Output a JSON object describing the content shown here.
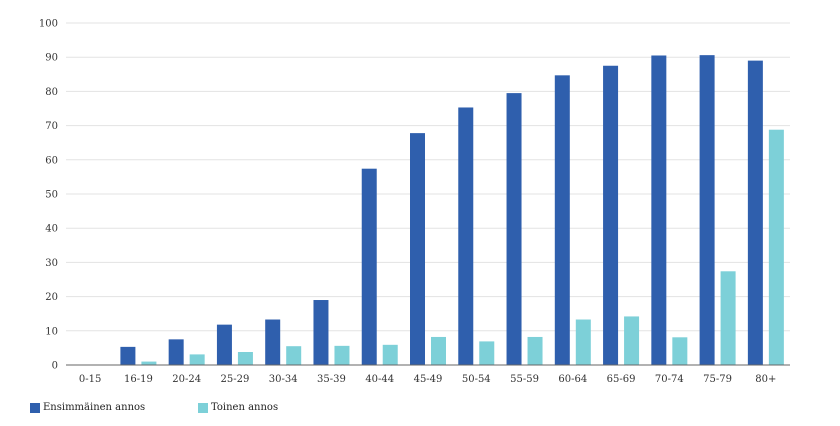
{
  "chart_data": {
    "type": "bar",
    "categories": [
      "0-15",
      "16-19",
      "20-24",
      "25-29",
      "30-34",
      "35-39",
      "40-44",
      "45-49",
      "50-54",
      "55-59",
      "60-64",
      "65-69",
      "70-74",
      "75-79",
      "80+"
    ],
    "series": [
      {
        "name": "Ensimmäinen annos",
        "color": "#2f5fad",
        "values": [
          0,
          5.3,
          7.5,
          11.8,
          13.3,
          19.0,
          57.4,
          67.8,
          75.3,
          79.5,
          84.7,
          87.5,
          90.5,
          90.6,
          89.0
        ]
      },
      {
        "name": "Toinen annos",
        "color": "#7dd0d8",
        "values": [
          0,
          1.0,
          3.1,
          3.8,
          5.5,
          5.6,
          5.9,
          8.2,
          6.9,
          8.2,
          13.3,
          14.2,
          8.1,
          27.4,
          68.8
        ]
      }
    ],
    "y_ticks": [
      "0",
      "10",
      "20",
      "30",
      "40",
      "50",
      "60",
      "70",
      "80",
      "90",
      "100"
    ],
    "ylim": [
      0,
      100
    ],
    "grid": true,
    "legend_position": "bottom-left"
  }
}
